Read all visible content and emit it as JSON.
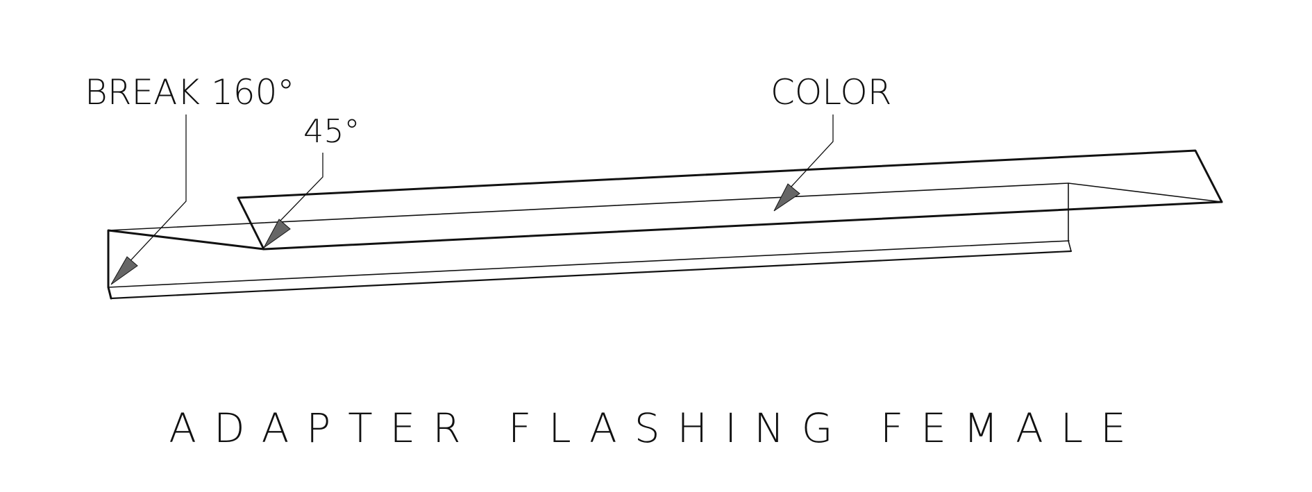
{
  "callouts": {
    "break": "BREAK 160°",
    "angle": "45°",
    "color": "COLOR"
  },
  "title": "ADAPTER FLASHING FEMALE",
  "colors": {
    "line": "#111111",
    "arrow_fill": "#666666",
    "background": "#ffffff"
  }
}
